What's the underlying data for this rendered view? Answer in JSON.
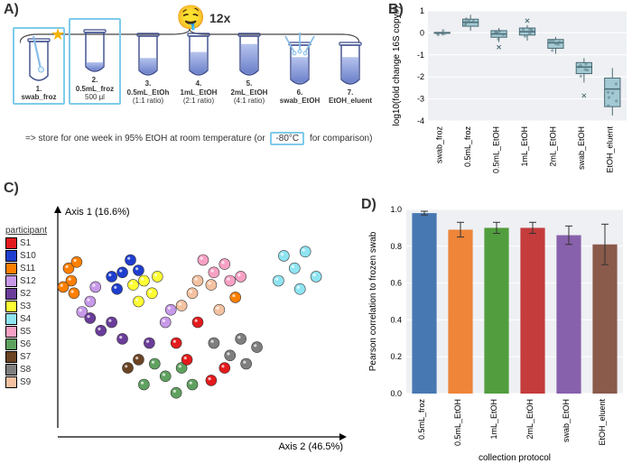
{
  "panelA": {
    "label": "A)",
    "multiplier": "12x",
    "tubes": [
      {
        "num": "1.",
        "name": "swab_froz",
        "sub": "",
        "swab": true,
        "fill": 0,
        "highlight": true,
        "star": true,
        "multi": false
      },
      {
        "num": "2.",
        "name": "0.5mL_froz",
        "sub": "500 µl",
        "swab": false,
        "fill": 0.25,
        "highlight": true,
        "star": false,
        "multi": false
      },
      {
        "num": "3.",
        "name": "0.5mL_EtOh",
        "sub": "(1:1 ratio)",
        "swab": false,
        "fill": 0.45,
        "highlight": false,
        "star": false,
        "multi": false
      },
      {
        "num": "4.",
        "name": "1mL_EtOH",
        "sub": "(2:1 ratio)",
        "swab": false,
        "fill": 0.6,
        "highlight": false,
        "star": false,
        "multi": false
      },
      {
        "num": "5.",
        "name": "2mL_EtOH",
        "sub": "(4:1 ratio)",
        "swab": false,
        "fill": 0.8,
        "highlight": false,
        "star": false,
        "multi": false
      },
      {
        "num": "6.",
        "name": "swab_EtOH",
        "sub": "",
        "swab": true,
        "fill": 0.7,
        "highlight": false,
        "star": false,
        "multi": true
      },
      {
        "num": "7.",
        "name": "EtOH_eluent",
        "sub": "",
        "swab": false,
        "fill": 0.7,
        "highlight": false,
        "star": false,
        "multi": false
      }
    ],
    "tube_colors": {
      "outline": "#3a4a8c",
      "fill_top": "#b6c3ee",
      "fill_bot": "#6a7fc9",
      "swab": "#89bde8",
      "swab_tip": "#dff0fb"
    },
    "footnote": {
      "pre": "=> store for one week in 95% EtOH at room temperature (or",
      "boxed": "-80°C",
      "post": "for comparison)"
    }
  },
  "panelB": {
    "label": "B)",
    "ylabel": "log10(fold change 16S copy#)",
    "ylim": [
      -4,
      1
    ],
    "yticks": [
      -4,
      -3,
      -2,
      -1,
      0,
      1
    ],
    "categories": [
      "swab_froz",
      "0.5mL_froz",
      "0.5mL_EtOH",
      "1mL_EtOH",
      "2mL_EtOH",
      "swab_EtOH",
      "EtOH_eluent"
    ],
    "boxes": [
      {
        "q1": -0.02,
        "med": 0.0,
        "q3": 0.02,
        "lo": -0.05,
        "hi": 0.05,
        "out": []
      },
      {
        "q1": 0.3,
        "med": 0.48,
        "q3": 0.62,
        "lo": 0.1,
        "hi": 0.82,
        "out": []
      },
      {
        "q1": -0.2,
        "med": -0.05,
        "q3": 0.1,
        "lo": -0.42,
        "hi": 0.22,
        "out": [
          -0.65
        ]
      },
      {
        "q1": -0.1,
        "med": 0.05,
        "q3": 0.22,
        "lo": -0.35,
        "hi": 0.35,
        "out": [
          0.55
        ]
      },
      {
        "q1": -0.7,
        "med": -0.45,
        "q3": -0.3,
        "lo": -0.95,
        "hi": -0.18,
        "out": []
      },
      {
        "q1": -1.85,
        "med": -1.55,
        "q3": -1.35,
        "lo": -2.25,
        "hi": -1.15,
        "out": [
          -2.85
        ]
      },
      {
        "q1": -3.35,
        "med": -2.55,
        "q3": -2.05,
        "lo": -3.75,
        "hi": -1.6,
        "out": []
      }
    ],
    "box_fill": "#a3c9d4",
    "box_stroke": "#4a6a73",
    "jitter_color": "#5a7a83",
    "grid": "#ffffff",
    "plot_bg": "#eef0f3"
  },
  "panelC": {
    "label": "C)",
    "legend_title": "participant",
    "axis1": "Axis 1 (16.6%)",
    "axis2": "Axis 2 (46.5%)",
    "participants": [
      {
        "id": "S1",
        "color": "#e31a1c"
      },
      {
        "id": "S10",
        "color": "#1f3ecf"
      },
      {
        "id": "S11",
        "color": "#ff7f00"
      },
      {
        "id": "S12",
        "color": "#c799e8"
      },
      {
        "id": "S2",
        "color": "#6a3d9a"
      },
      {
        "id": "S3",
        "color": "#ffff33"
      },
      {
        "id": "S4",
        "color": "#8fe4f2"
      },
      {
        "id": "S5",
        "color": "#f7a1c4"
      },
      {
        "id": "S6",
        "color": "#5fa15f"
      },
      {
        "id": "S7",
        "color": "#6b4423"
      },
      {
        "id": "S8",
        "color": "#7f7f7f"
      },
      {
        "id": "S9",
        "color": "#f4c2a1"
      }
    ],
    "points": [
      {
        "p": "S11",
        "x": 0.02,
        "y": 0.24
      },
      {
        "p": "S11",
        "x": 0.03,
        "y": 0.3
      },
      {
        "p": "S11",
        "x": 0.05,
        "y": 0.21
      },
      {
        "p": "S11",
        "x": 0.0,
        "y": 0.33
      },
      {
        "p": "S11",
        "x": 0.04,
        "y": 0.36
      },
      {
        "p": "S12",
        "x": 0.1,
        "y": 0.4
      },
      {
        "p": "S12",
        "x": 0.12,
        "y": 0.33
      },
      {
        "p": "S12",
        "x": 0.07,
        "y": 0.45
      },
      {
        "p": "S10",
        "x": 0.18,
        "y": 0.28
      },
      {
        "p": "S10",
        "x": 0.22,
        "y": 0.26
      },
      {
        "p": "S10",
        "x": 0.25,
        "y": 0.2
      },
      {
        "p": "S10",
        "x": 0.28,
        "y": 0.25
      },
      {
        "p": "S10",
        "x": 0.2,
        "y": 0.34
      },
      {
        "p": "S2",
        "x": 0.1,
        "y": 0.48
      },
      {
        "p": "S2",
        "x": 0.14,
        "y": 0.54
      },
      {
        "p": "S2",
        "x": 0.18,
        "y": 0.5
      },
      {
        "p": "S2",
        "x": 0.22,
        "y": 0.58
      },
      {
        "p": "S3",
        "x": 0.3,
        "y": 0.3
      },
      {
        "p": "S3",
        "x": 0.33,
        "y": 0.36
      },
      {
        "p": "S3",
        "x": 0.28,
        "y": 0.4
      },
      {
        "p": "S3",
        "x": 0.26,
        "y": 0.32
      },
      {
        "p": "S3",
        "x": 0.35,
        "y": 0.28
      },
      {
        "p": "S7",
        "x": 0.24,
        "y": 0.72
      },
      {
        "p": "S7",
        "x": 0.28,
        "y": 0.68
      },
      {
        "p": "S6",
        "x": 0.34,
        "y": 0.7
      },
      {
        "p": "S6",
        "x": 0.38,
        "y": 0.76
      },
      {
        "p": "S6",
        "x": 0.3,
        "y": 0.8
      },
      {
        "p": "S6",
        "x": 0.44,
        "y": 0.72
      },
      {
        "p": "S6",
        "x": 0.42,
        "y": 0.84
      },
      {
        "p": "S6",
        "x": 0.48,
        "y": 0.8
      },
      {
        "p": "S1",
        "x": 0.46,
        "y": 0.68
      },
      {
        "p": "S1",
        "x": 0.42,
        "y": 0.6
      },
      {
        "p": "S1",
        "x": 0.55,
        "y": 0.78
      },
      {
        "p": "S1",
        "x": 0.6,
        "y": 0.72
      },
      {
        "p": "S1",
        "x": 0.5,
        "y": 0.5
      },
      {
        "p": "S8",
        "x": 0.56,
        "y": 0.6
      },
      {
        "p": "S8",
        "x": 0.62,
        "y": 0.66
      },
      {
        "p": "S8",
        "x": 0.66,
        "y": 0.58
      },
      {
        "p": "S8",
        "x": 0.68,
        "y": 0.7
      },
      {
        "p": "S8",
        "x": 0.72,
        "y": 0.62
      },
      {
        "p": "S9",
        "x": 0.44,
        "y": 0.42
      },
      {
        "p": "S9",
        "x": 0.48,
        "y": 0.36
      },
      {
        "p": "S9",
        "x": 0.55,
        "y": 0.32
      },
      {
        "p": "S9",
        "x": 0.58,
        "y": 0.44
      },
      {
        "p": "S9",
        "x": 0.5,
        "y": 0.3
      },
      {
        "p": "S5",
        "x": 0.56,
        "y": 0.26
      },
      {
        "p": "S5",
        "x": 0.6,
        "y": 0.22
      },
      {
        "p": "S5",
        "x": 0.62,
        "y": 0.3
      },
      {
        "p": "S5",
        "x": 0.52,
        "y": 0.2
      },
      {
        "p": "S5",
        "x": 0.66,
        "y": 0.28
      },
      {
        "p": "S11",
        "x": 0.64,
        "y": 0.38
      },
      {
        "p": "S4",
        "x": 0.82,
        "y": 0.18
      },
      {
        "p": "S4",
        "x": 0.86,
        "y": 0.24
      },
      {
        "p": "S4",
        "x": 0.9,
        "y": 0.16
      },
      {
        "p": "S4",
        "x": 0.94,
        "y": 0.28
      },
      {
        "p": "S4",
        "x": 0.88,
        "y": 0.34
      },
      {
        "p": "S4",
        "x": 0.8,
        "y": 0.3
      },
      {
        "p": "S12",
        "x": 0.38,
        "y": 0.5
      },
      {
        "p": "S12",
        "x": 0.4,
        "y": 0.44
      },
      {
        "p": "S2",
        "x": 0.32,
        "y": 0.6
      }
    ],
    "point_stroke": "#333333"
  },
  "panelD": {
    "label": "D)",
    "ylabel": "Pearson correlation to frozen swab",
    "xlabel": "collection protocol",
    "ylim": [
      0,
      1
    ],
    "yticks": [
      0.0,
      0.2,
      0.4,
      0.6,
      0.8,
      1.0
    ],
    "categories": [
      "0.5mL_froz",
      "0.5mL_EtOH",
      "1mL_EtOH",
      "2mL_EtOH",
      "swab_EtOH",
      "EtOH_eluent"
    ],
    "values": [
      0.98,
      0.89,
      0.9,
      0.9,
      0.86,
      0.81
    ],
    "err": [
      0.01,
      0.04,
      0.03,
      0.03,
      0.05,
      0.11
    ],
    "bar_colors": [
      "#4878b2",
      "#ee8539",
      "#529d3e",
      "#c43c3c",
      "#8861ac",
      "#8a5a4b"
    ],
    "plot_bg": "#eef0f3",
    "grid": "#ffffff",
    "edge": "#333333"
  }
}
